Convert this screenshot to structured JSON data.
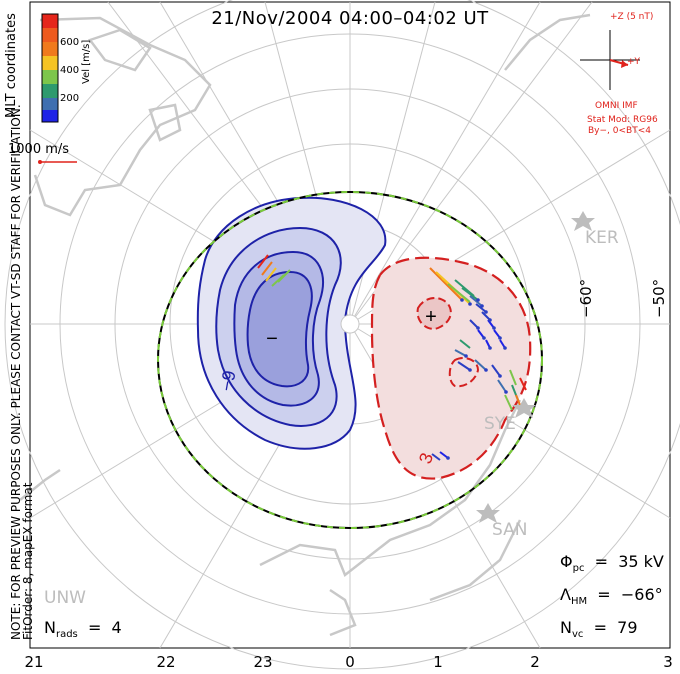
{
  "title": "21/Nov/2004 04:00–04:02 UT",
  "side_note": {
    "line1": "NOTE: FOR PREVIEW PURPOSES ONLY. PLEASE CONTACT VT-SD STAFF FOR VERIFICATION.",
    "line2": "FitOrder: 8, mapEX format"
  },
  "coords_label": "MLT coordinates",
  "colorbar": {
    "title": "Vel [m/s]",
    "ticks": [
      "600",
      "400",
      "200"
    ],
    "colors": [
      "#e5261b",
      "#f07a1c",
      "#f5c323",
      "#7dc64b",
      "#2e9a6e",
      "#3f6fb0",
      "#2a3fc4",
      "#1f23e6"
    ]
  },
  "scale_vector": "1000 m/s",
  "imf": {
    "z_label": "+Z (5 nT)",
    "y_label": "+Y",
    "source": "OMNI IMF",
    "model": "Stat Mod: RG96",
    "condition": "By−, 0<BT<4"
  },
  "mlt_labels": [
    "21",
    "22",
    "23",
    "0",
    "1",
    "2",
    "3"
  ],
  "lat_labels": [
    "−60°",
    "−50°"
  ],
  "stations": [
    "KER",
    "SYE",
    "SAN",
    "UNW"
  ],
  "contour_labels": {
    "neg": "−9",
    "pos": "3"
  },
  "stats": {
    "phi_pc": "35 kV",
    "lambda_hm": "−66°",
    "n_vc": "79",
    "n_rads": "4"
  },
  "colors": {
    "neg_contour": "#1e22a8",
    "pos_contour": "#d42020",
    "boundary_green": "#7acc3a",
    "land": "#c8c8c8",
    "grid": "#c8c8c8",
    "imf_red": "#e0231c"
  }
}
